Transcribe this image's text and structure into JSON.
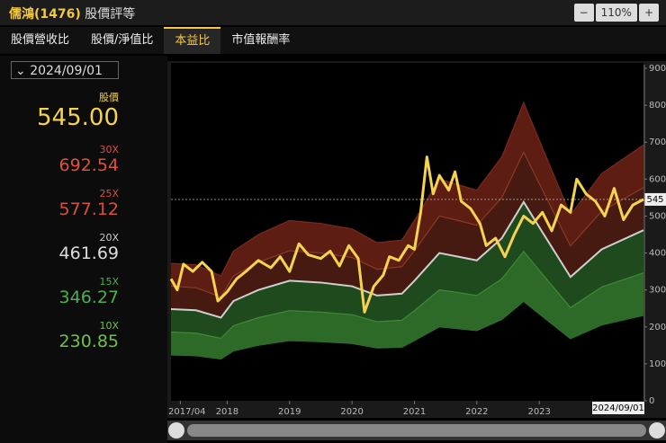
{
  "header": {
    "stock": "儒鴻(1476)",
    "title": "股價評等",
    "zoom": "110%"
  },
  "tabs": {
    "items": [
      "股價營收比",
      "股價/淨值比",
      "本益比",
      "市值報酬率"
    ],
    "active": 2
  },
  "sidebar": {
    "date": "2024/09/01",
    "items": [
      {
        "label": "股價",
        "value": "545.00",
        "color": "#f5d34f"
      },
      {
        "label": "30X",
        "value": "692.54",
        "color": "#e0503a"
      },
      {
        "label": "25X",
        "value": "577.12",
        "color": "#d8503c"
      },
      {
        "label": "20X",
        "value": "461.69",
        "color": "#dddddd"
      },
      {
        "label": "15X",
        "value": "346.27",
        "color": "#4caf50"
      },
      {
        "label": "10X",
        "value": "230.85",
        "color": "#6cc34a"
      }
    ]
  },
  "chart_data": {
    "type": "line",
    "xlim": [
      2017.1,
      2024.67
    ],
    "xticks": [
      {
        "value": 2017.25,
        "label": "2017/04"
      },
      2018,
      2019,
      2020,
      2021,
      2022,
      2023
    ],
    "ylim": [
      0,
      900
    ],
    "yticks": [
      0,
      100,
      200,
      300,
      400,
      500,
      600,
      700,
      800,
      900
    ],
    "grid": false,
    "x": [
      2017.1,
      2017.2,
      2017.3,
      2017.45,
      2017.6,
      2017.75,
      2017.85,
      2018.0,
      2018.15,
      2018.3,
      2018.5,
      2018.7,
      2018.85,
      2019.0,
      2019.15,
      2019.3,
      2019.5,
      2019.65,
      2019.8,
      2019.95,
      2020.1,
      2020.2,
      2020.35,
      2020.5,
      2020.6,
      2020.75,
      2020.9,
      2021.0,
      2021.1,
      2021.2,
      2021.3,
      2021.4,
      2021.55,
      2021.65,
      2021.75,
      2021.9,
      2022.05,
      2022.15,
      2022.3,
      2022.45,
      2022.6,
      2022.75,
      2022.9,
      2023.05,
      2023.2,
      2023.35,
      2023.5,
      2023.6,
      2023.75,
      2023.9,
      2024.05,
      2024.2,
      2024.35,
      2024.5,
      2024.67
    ],
    "series": [
      {
        "name": "股價",
        "color": "#f5d34f",
        "values": [
          330,
          300,
          370,
          350,
          375,
          350,
          270,
          295,
          330,
          350,
          380,
          360,
          390,
          350,
          425,
          395,
          385,
          405,
          365,
          420,
          385,
          240,
          310,
          340,
          390,
          380,
          420,
          410,
          510,
          660,
          560,
          610,
          570,
          620,
          540,
          520,
          480,
          420,
          440,
          390,
          450,
          500,
          480,
          510,
          460,
          530,
          510,
          600,
          560,
          540,
          500,
          575,
          490,
          530,
          545
        ]
      }
    ],
    "bands": {
      "x": [
        2017.1,
        2017.5,
        2017.9,
        2018.1,
        2018.5,
        2019.0,
        2019.5,
        2020.0,
        2020.4,
        2020.8,
        2021.0,
        2021.4,
        2021.7,
        2022.0,
        2022.4,
        2022.75,
        2023.0,
        2023.5,
        2024.0,
        2024.67
      ],
      "series": [
        {
          "name": "30X",
          "color": "#7a2a1c",
          "fill": "#5e1d12",
          "values": [
            372,
            368,
            338,
            405,
            450,
            488,
            480,
            465,
            428,
            435,
            488,
            600,
            585,
            570,
            660,
            807,
            705,
            503,
            615,
            692.54
          ]
        },
        {
          "name": "25X",
          "color": "#8a3a28",
          "fill": "#461a10",
          "values": [
            310,
            306,
            281,
            338,
            375,
            406,
            400,
            388,
            356,
            363,
            406,
            500,
            488,
            475,
            550,
            673,
            588,
            419,
            513,
            577.12
          ]
        },
        {
          "name": "20X",
          "color": "#cfcfcf",
          "fill": "#1f4a1e",
          "values": [
            248,
            245,
            225,
            270,
            300,
            325,
            320,
            310,
            285,
            290,
            325,
            400,
            390,
            380,
            440,
            538,
            470,
            335,
            410,
            461.69
          ]
        },
        {
          "name": "15X",
          "color": "#3f8a36",
          "fill": "#2d6a28",
          "values": [
            186,
            183,
            169,
            203,
            225,
            244,
            240,
            233,
            214,
            218,
            244,
            300,
            293,
            285,
            330,
            404,
            353,
            252,
            308,
            346.27
          ]
        },
        {
          "name": "10X",
          "color": "#2f6b2a",
          "values": [
            124,
            122,
            113,
            135,
            150,
            163,
            160,
            155,
            143,
            145,
            163,
            200,
            195,
            190,
            220,
            269,
            235,
            168,
            205,
            230.85
          ]
        }
      ]
    }
  }
}
